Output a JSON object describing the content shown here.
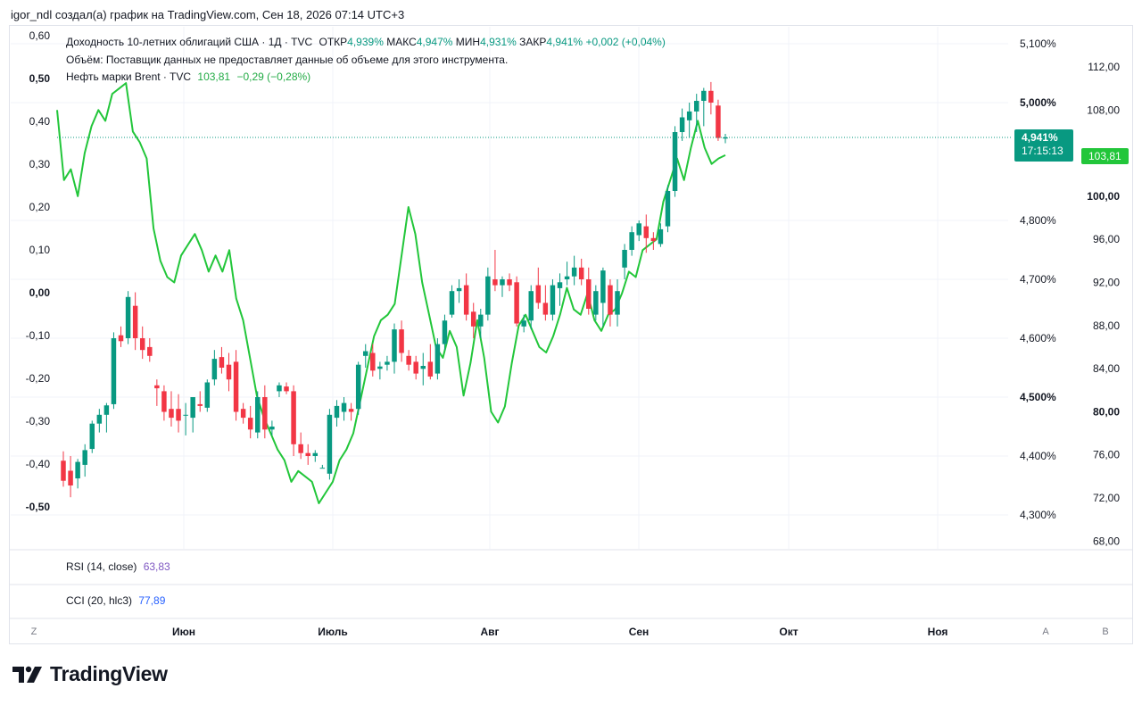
{
  "header": {
    "author_line": "igor_ndl создал(а) график на TradingView.com, Сен 18, 2026 07:14 UTC+3"
  },
  "legend": {
    "line1_title": "Доходность 10-летних облигаций США · 1Д · TVC",
    "open_label": "ОТКР",
    "open_value": "4,939%",
    "high_label": "МАКС",
    "high_value": "4,947%",
    "low_label": "МИН",
    "low_value": "4,931%",
    "close_label": "ЗАКР",
    "close_value": "4,941%",
    "change": "+0,002 (+0,04%)",
    "line2": "Объём: Поставщик данных не предоставляет данные об объеме для этого инструмента.",
    "line3_title": "Нефть марки Brent · TVC",
    "brent_value": "103,81",
    "brent_change": "−0,29 (−0,28%)"
  },
  "indicators": {
    "rsi_label": "RSI (14, close)",
    "rsi_value": "63,83",
    "cci_label": "CCI (20, hlc3)",
    "cci_value": "77,89"
  },
  "price_tags": {
    "yield_tag": "4,941%",
    "yield_timer": "17:15:13",
    "brent_tag": "103,81"
  },
  "axis_buttons": {
    "left": "Z",
    "auto": "A",
    "log": "B"
  },
  "brand": {
    "name": "TradingView"
  },
  "colors": {
    "up": "#089981",
    "down": "#f23645",
    "brent": "#22c63a",
    "grid": "#f0f3fa"
  },
  "chart_data": [
    {
      "type": "candlestick",
      "series_name": "Доходность 10-летних облигаций США",
      "unit": "%",
      "x_ticks": [
        "Июн",
        "Июль",
        "Авг",
        "Сен",
        "Окт",
        "Ноя"
      ],
      "y_ticks": [
        "5,100%",
        "5,000%",
        "4,800%",
        "4,700%",
        "4,600%",
        "4,500%",
        "4,400%",
        "4,300%"
      ],
      "ylim": [
        4.2,
        5.15
      ],
      "candles": [
        [
          4.392,
          4.408,
          4.348,
          4.358
        ],
        [
          4.375,
          4.4,
          4.33,
          4.35
        ],
        [
          4.362,
          4.395,
          4.345,
          4.39
        ],
        [
          4.385,
          4.42,
          4.365,
          4.41
        ],
        [
          4.412,
          4.46,
          4.405,
          4.455
        ],
        [
          4.455,
          4.48,
          4.44,
          4.47
        ],
        [
          4.47,
          4.49,
          4.44,
          4.486
        ],
        [
          4.488,
          4.61,
          4.48,
          4.6
        ],
        [
          4.605,
          4.62,
          4.585,
          4.595
        ],
        [
          4.6,
          4.68,
          4.59,
          4.67
        ],
        [
          4.655,
          4.678,
          4.58,
          4.6
        ],
        [
          4.6,
          4.62,
          4.565,
          4.58
        ],
        [
          4.585,
          4.6,
          4.56,
          4.57
        ],
        [
          4.52,
          4.53,
          4.485,
          4.515
        ],
        [
          4.51,
          4.52,
          4.46,
          4.475
        ],
        [
          4.48,
          4.51,
          4.45,
          4.465
        ],
        [
          4.48,
          4.505,
          4.44,
          4.46
        ],
        [
          4.47,
          4.49,
          4.435,
          4.47
        ],
        [
          4.465,
          4.495,
          4.44,
          4.5
        ],
        [
          4.488,
          4.51,
          4.475,
          4.485
        ],
        [
          4.482,
          4.53,
          4.475,
          4.525
        ],
        [
          4.53,
          4.58,
          4.52,
          4.565
        ],
        [
          4.568,
          4.585,
          4.54,
          4.55
        ],
        [
          4.555,
          4.575,
          4.51,
          4.53
        ],
        [
          4.56,
          4.58,
          4.46,
          4.475
        ],
        [
          4.48,
          4.49,
          4.455,
          4.465
        ],
        [
          4.465,
          4.485,
          4.43,
          4.445
        ],
        [
          4.44,
          4.51,
          4.43,
          4.5
        ],
        [
          4.5,
          4.52,
          4.43,
          4.445
        ],
        [
          4.445,
          4.46,
          4.435,
          4.45
        ],
        [
          4.51,
          4.525,
          4.5,
          4.52
        ],
        [
          4.518,
          4.525,
          4.505,
          4.51
        ],
        [
          4.51,
          4.52,
          4.4,
          4.42
        ],
        [
          4.42,
          4.44,
          4.395,
          4.405
        ],
        [
          4.405,
          4.42,
          4.385,
          4.4
        ],
        [
          4.4,
          4.41,
          4.39,
          4.405
        ],
        [
          4.38,
          4.385,
          4.38,
          4.38
        ],
        [
          4.37,
          4.48,
          4.36,
          4.47
        ],
        [
          4.465,
          4.495,
          4.45,
          4.485
        ],
        [
          4.475,
          4.5,
          4.46,
          4.49
        ],
        [
          4.48,
          4.49,
          4.46,
          4.475
        ],
        [
          4.48,
          4.56,
          4.47,
          4.555
        ],
        [
          4.57,
          4.59,
          4.55,
          4.578
        ],
        [
          4.575,
          4.59,
          4.535,
          4.545
        ],
        [
          4.548,
          4.56,
          4.53,
          4.552
        ],
        [
          4.555,
          4.57,
          4.545,
          4.56
        ],
        [
          4.56,
          4.625,
          4.54,
          4.615
        ],
        [
          4.615,
          4.63,
          4.56,
          4.575
        ],
        [
          4.57,
          4.58,
          4.545,
          4.555
        ],
        [
          4.56,
          4.57,
          4.53,
          4.54
        ],
        [
          4.548,
          4.575,
          4.52,
          4.553
        ],
        [
          4.56,
          4.59,
          4.53,
          4.535
        ],
        [
          4.54,
          4.6,
          4.53,
          4.59
        ],
        [
          4.59,
          4.64,
          4.58,
          4.63
        ],
        [
          4.64,
          4.69,
          4.635,
          4.68
        ],
        [
          4.68,
          4.7,
          4.66,
          4.685
        ],
        [
          4.69,
          4.71,
          4.63,
          4.64
        ],
        [
          4.645,
          4.66,
          4.6,
          4.62
        ],
        [
          4.62,
          4.65,
          4.6,
          4.64
        ],
        [
          4.64,
          4.72,
          4.63,
          4.705
        ],
        [
          4.7,
          4.75,
          4.68,
          4.69
        ],
        [
          4.69,
          4.705,
          4.67,
          4.7
        ],
        [
          4.7,
          4.71,
          4.68,
          4.69
        ],
        [
          4.695,
          4.705,
          4.62,
          4.625
        ],
        [
          4.62,
          4.64,
          4.61,
          4.63
        ],
        [
          4.63,
          4.69,
          4.615,
          4.68
        ],
        [
          4.69,
          4.72,
          4.65,
          4.66
        ],
        [
          4.66,
          4.69,
          4.63,
          4.64
        ],
        [
          4.64,
          4.7,
          4.63,
          4.69
        ],
        [
          4.685,
          4.71,
          4.655,
          4.695
        ],
        [
          4.7,
          4.73,
          4.69,
          4.705
        ],
        [
          4.705,
          4.74,
          4.69,
          4.72
        ],
        [
          4.72,
          4.735,
          4.69,
          4.7
        ],
        [
          4.7,
          4.72,
          4.64,
          4.65
        ],
        [
          4.64,
          4.69,
          4.63,
          4.68
        ],
        [
          4.66,
          4.72,
          4.62,
          4.715
        ],
        [
          4.69,
          4.7,
          4.62,
          4.64
        ],
        [
          4.64,
          4.7,
          4.62,
          4.68
        ],
        [
          4.72,
          4.76,
          4.7,
          4.75
        ],
        [
          4.75,
          4.79,
          4.74,
          4.78
        ],
        [
          4.775,
          4.8,
          4.765,
          4.795
        ],
        [
          4.79,
          4.81,
          4.745,
          4.77
        ],
        [
          4.77,
          4.78,
          4.75,
          4.765
        ],
        [
          4.76,
          4.795,
          4.755,
          4.785
        ],
        [
          4.79,
          4.86,
          4.78,
          4.85
        ],
        [
          4.85,
          4.96,
          4.84,
          4.95
        ],
        [
          4.95,
          4.99,
          4.935,
          4.975
        ],
        [
          4.97,
          5.0,
          4.94,
          4.985
        ],
        [
          4.985,
          5.015,
          4.95,
          5.003
        ],
        [
          5.003,
          5.025,
          4.96,
          5.02
        ],
        [
          5.02,
          5.035,
          4.98,
          5.0
        ],
        [
          4.995,
          5.005,
          4.935,
          4.94
        ],
        [
          4.939,
          4.947,
          4.931,
          4.941
        ]
      ]
    },
    {
      "type": "line",
      "series_name": "Нефть марки Brent",
      "y_ticks": [
        "112,00",
        "108,00",
        "100,00",
        "96,00",
        "92,00",
        "88,00",
        "84,00",
        "80,00",
        "76,00",
        "72,00",
        "68,00"
      ],
      "ylim": [
        66.5,
        114
      ],
      "values": [
        108.0,
        101.5,
        102.5,
        100.0,
        104.0,
        106.5,
        108.0,
        107.0,
        109.5,
        110.0,
        110.5,
        106.0,
        105.0,
        103.5,
        97.0,
        94.0,
        92.5,
        92.0,
        94.5,
        95.5,
        96.5,
        95.0,
        93.0,
        94.5,
        93.0,
        95.0,
        90.5,
        88.5,
        85.0,
        81.5,
        79.5,
        78.0,
        76.5,
        75.5,
        73.5,
        74.5,
        74.0,
        73.5,
        71.5,
        72.5,
        73.5,
        75.5,
        76.5,
        78.0,
        81.0,
        84.0,
        87.0,
        88.5,
        89.0,
        90.0,
        94.5,
        99.0,
        96.5,
        92.0,
        89.0,
        86.0,
        85.0,
        87.5,
        86.0,
        81.5,
        84.5,
        88.5,
        85.0,
        80.0,
        79.0,
        80.5,
        84.5,
        88.0,
        89.0,
        87.5,
        86.0,
        85.5,
        87.0,
        89.0,
        91.5,
        89.5,
        89.0,
        91.0,
        88.5,
        87.5,
        89.0,
        89.5,
        91.0,
        93.0,
        92.5,
        95.0,
        95.5,
        96.0,
        99.5,
        101.5,
        103.5,
        101.5,
        104.5,
        107.0,
        104.5,
        103.0,
        103.5,
        103.81
      ],
      "last_value": 103.81
    },
    {
      "type": "axis",
      "series_name": "left scale",
      "y_ticks": [
        "0,60",
        "0,50",
        "0,40",
        "0,30",
        "0,20",
        "0,10",
        "0,00",
        "-0,10",
        "-0,20",
        "-0,30",
        "-0,40",
        "-0,50"
      ],
      "ylim": [
        -0.55,
        0.6
      ]
    }
  ]
}
